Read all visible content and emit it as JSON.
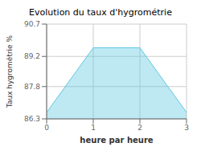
{
  "chart_data": {
    "type": "area",
    "title": "Evolution du taux d'hygrométrie",
    "xlabel": "heure par heure",
    "ylabel": "Taux hygrométrie %",
    "x": [
      0,
      1,
      2,
      3
    ],
    "values": [
      86.6,
      89.6,
      89.6,
      86.6
    ],
    "color": "#5cc8e0",
    "xlim": [
      0,
      3
    ],
    "ylim": [
      86.3,
      90.7
    ],
    "xticks": [
      0,
      1,
      2,
      3
    ],
    "yticks": [
      86.3,
      87.8,
      89.2,
      90.7
    ],
    "grid": true
  }
}
